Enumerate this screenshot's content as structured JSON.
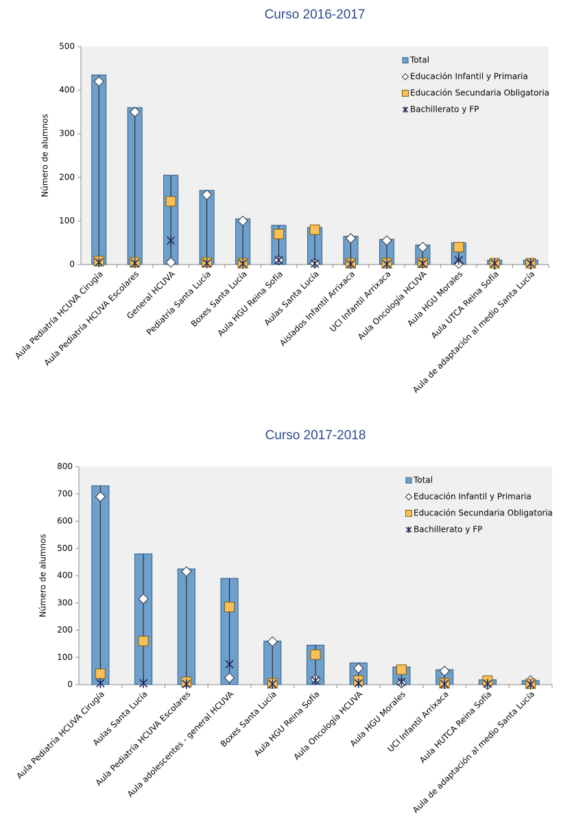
{
  "chart_data": [
    {
      "type": "bar",
      "title": "Curso 2016-2017",
      "ylabel": "Número de alumnos",
      "categories": [
        "Aula Pediatría HCUVA Cirugía",
        "Aula Pediatría HCUVA Escolares",
        "General HCUVA",
        "Pediatría Santa Lucía",
        "Boxes Santa Lucía",
        "Aula HGU Reina Sofía",
        "Aulas Santa Lucía",
        "Aislados Infantil Arrixaca",
        "UCI Infantil Arrixaca",
        "Aula Oncología HCUVA",
        "Aula HGU Morales",
        "Aula UTCA Reina Sofía",
        "Aula de adaptación al medio Santa Lucía"
      ],
      "series": [
        {
          "name": "Total",
          "marker": "bar",
          "color": "#6fa0cc",
          "values": [
            435,
            360,
            205,
            170,
            105,
            90,
            85,
            65,
            58,
            45,
            50,
            10,
            10
          ]
        },
        {
          "name": "Educación Infantil y Primaria",
          "marker": "diamond",
          "color": "#ffffff",
          "values": [
            420,
            350,
            5,
            160,
            100,
            10,
            3,
            60,
            55,
            40,
            2,
            0,
            0
          ]
        },
        {
          "name": "Educación Secundaria Obligatoria",
          "marker": "square",
          "color": "#f9c158",
          "values": [
            8,
            5,
            145,
            5,
            3,
            70,
            80,
            3,
            3,
            4,
            40,
            3,
            3
          ]
        },
        {
          "name": "Bachillerato y FP",
          "marker": "star",
          "color": "#1f2a5a",
          "values": [
            5,
            3,
            55,
            3,
            2,
            10,
            2,
            1,
            1,
            2,
            10,
            3,
            3
          ]
        }
      ],
      "ylim": [
        0,
        500
      ],
      "yticks": [
        0,
        100,
        200,
        300,
        400,
        500
      ],
      "grid": false,
      "legend": "upper right"
    },
    {
      "type": "bar",
      "title": "Curso 2017-2018",
      "ylabel": "Número de alumnos",
      "categories": [
        "Aula Pediatría HCUVA Cirugía",
        "Aulas Santa Lucía",
        "Aula Pediatría HCUVA Escolares",
        "Aula adolescentes - general HCUVA",
        "Boxes Santa Lucía",
        "Aula HGU Reina Sofía",
        "Aula Oncología HCUVA",
        "Aula HGU Morales",
        "UCI Infantil Arrixaca",
        "Aula HUTCA Reina Sofía",
        "Aula de adaptación al medio Santa Lucía"
      ],
      "series": [
        {
          "name": "Total",
          "marker": "bar",
          "color": "#6fa0cc",
          "values": [
            730,
            480,
            425,
            390,
            160,
            145,
            80,
            65,
            55,
            18,
            15
          ]
        },
        {
          "name": "Educación Infantil y Primaria",
          "marker": "diamond",
          "color": "#ffffff",
          "values": [
            690,
            315,
            415,
            25,
            158,
            20,
            60,
            5,
            50,
            0,
            15
          ]
        },
        {
          "name": "Educación Secundaria Obligatoria",
          "marker": "square",
          "color": "#f9c158",
          "values": [
            40,
            160,
            10,
            285,
            5,
            110,
            15,
            55,
            5,
            15,
            3
          ]
        },
        {
          "name": "Bachillerato y FP",
          "marker": "star",
          "color": "#1f2a5a",
          "values": [
            5,
            5,
            2,
            75,
            2,
            15,
            5,
            10,
            2,
            3,
            1
          ]
        }
      ],
      "ylim": [
        0,
        800
      ],
      "yticks": [
        0,
        100,
        200,
        300,
        400,
        500,
        600,
        700,
        800
      ],
      "grid": false,
      "legend": "upper right"
    }
  ]
}
